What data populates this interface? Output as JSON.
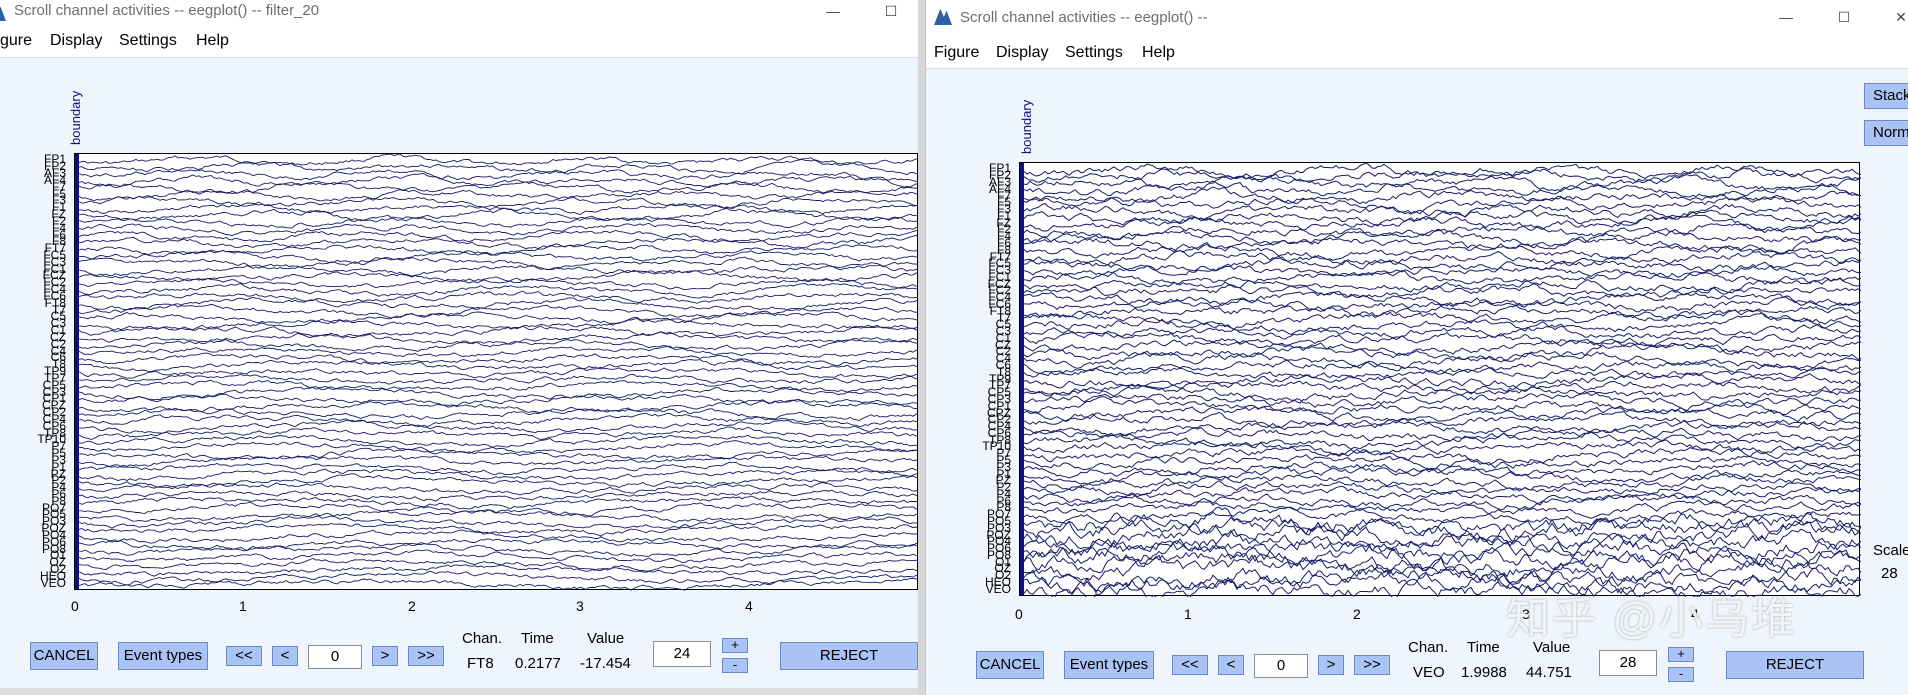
{
  "left_window": {
    "title": "Scroll channel activities -- eegplot() -- filter_20",
    "menu": [
      "gure",
      "Display",
      "Settings",
      "Help"
    ],
    "boundary_label": "boundary",
    "channels": [
      "FP1",
      "FP2",
      "AF3",
      "AF4",
      "F7",
      "F5",
      "F3",
      "F1",
      "FZ",
      "F2",
      "F4",
      "F6",
      "F8",
      "FT7",
      "FC5",
      "FC3",
      "FC1",
      "FCZ",
      "FC2",
      "FC4",
      "FC6",
      "FT8",
      "T7",
      "C5",
      "C3",
      "C1",
      "CZ",
      "C2",
      "C4",
      "C6",
      "T8",
      "TP9",
      "TP7",
      "CP5",
      "CP3",
      "CP1",
      "CPZ",
      "CP2",
      "CP4",
      "CP6",
      "TP8",
      "TP10",
      "P7",
      "P5",
      "P3",
      "P1",
      "PZ",
      "P2",
      "P4",
      "P6",
      "P8",
      "PO7",
      "PO5",
      "PO3",
      "POZ",
      "PO4",
      "PO6",
      "PO8",
      "O1",
      "OZ",
      "O2",
      "HEO",
      "VEO"
    ],
    "x_ticks": [
      "0",
      "1",
      "2",
      "3",
      "4"
    ],
    "buttons": {
      "cancel": "CANCEL",
      "event_types": "Event types",
      "first": "<<",
      "prev": "<",
      "next": ">",
      "last": ">>",
      "plus": "+",
      "minus": "-",
      "reject": "REJECT"
    },
    "position_value": "0",
    "readout": {
      "chan_header": "Chan.",
      "time_header": "Time",
      "value_header": "Value",
      "chan": "FT8",
      "time": "0.2177",
      "value": "-17.454"
    },
    "scale_value": "24"
  },
  "right_window": {
    "title": "Scroll channel activities -- eegplot() --",
    "menu": [
      "Figure",
      "Display",
      "Settings",
      "Help"
    ],
    "boundary_label": "boundary",
    "channels": [
      "FP1",
      "FP2",
      "AF3",
      "AF4",
      "F7",
      "F5",
      "F3",
      "F1",
      "FZ",
      "F2",
      "F4",
      "F6",
      "F8",
      "FT7",
      "FC5",
      "FC3",
      "FC1",
      "FCZ",
      "FC2",
      "FC4",
      "FC6",
      "FT8",
      "T7",
      "C5",
      "C3",
      "C1",
      "CZ",
      "C2",
      "C4",
      "C6",
      "T8",
      "TP9",
      "TP7",
      "CP5",
      "CP3",
      "CP1",
      "CPZ",
      "CP2",
      "CP4",
      "CP6",
      "TP8",
      "TP10",
      "P7",
      "P5",
      "P3",
      "P1",
      "PZ",
      "P2",
      "P4",
      "P6",
      "P8",
      "PO7",
      "PO5",
      "PO3",
      "POZ",
      "PO4",
      "PO6",
      "PO8",
      "O1",
      "OZ",
      "O2",
      "HEO",
      "VEO"
    ],
    "x_ticks": [
      "0",
      "1",
      "2",
      "3",
      "4"
    ],
    "side_buttons": [
      "Stack",
      "Norm"
    ],
    "scale_label": "Scale",
    "scale_side_value": "28",
    "buttons": {
      "cancel": "CANCEL",
      "event_types": "Event types",
      "first": "<<",
      "prev": "<",
      "next": ">",
      "last": ">>",
      "plus": "+",
      "minus": "-",
      "reject": "REJECT"
    },
    "position_value": "0",
    "readout": {
      "chan_header": "Chan.",
      "time_header": "Time",
      "value_header": "Value",
      "chan": "VEO",
      "time": "1.9988",
      "value": "44.751"
    },
    "scale_value": "28"
  },
  "watermark": "知乎 @小乌堆",
  "colors": {
    "trace": "#1a1a66",
    "boundary": "#10107a",
    "button": "#a9c3f5",
    "window_bg": "#eef5fd"
  }
}
